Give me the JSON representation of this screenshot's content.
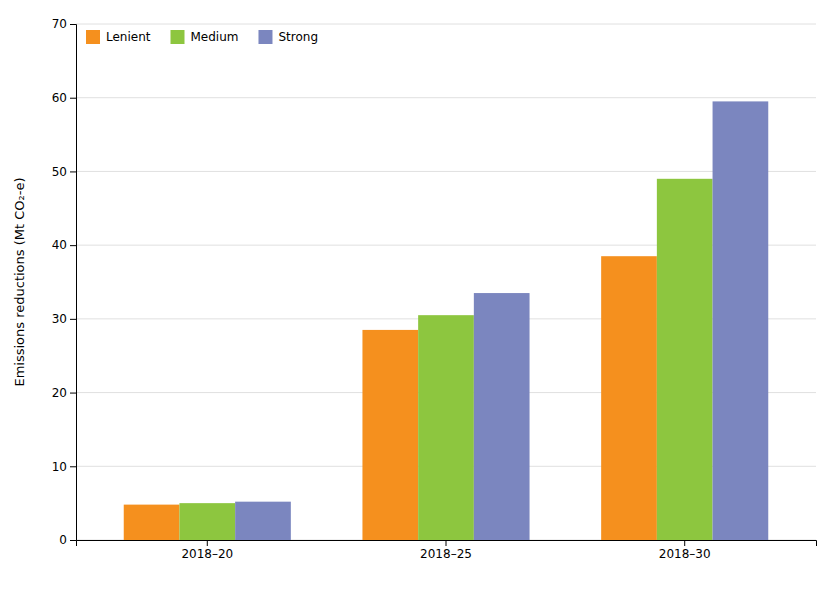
{
  "chart_data": {
    "type": "bar",
    "categories": [
      "2018–20",
      "2018–25",
      "2018–30"
    ],
    "series": [
      {
        "name": "Lenient",
        "color": "#F5901E",
        "values": [
          4.8,
          28.5,
          38.5
        ]
      },
      {
        "name": "Medium",
        "color": "#8DC63F",
        "values": [
          5.0,
          30.5,
          49.0
        ]
      },
      {
        "name": "Strong",
        "color": "#7B86BF",
        "values": [
          5.2,
          33.5,
          59.5
        ]
      }
    ],
    "ylabel": "Emissions reductions (Mt CO₂-e)",
    "ylim": [
      0,
      70
    ],
    "yticks": [
      0,
      10,
      20,
      30,
      40,
      50,
      60,
      70
    ],
    "grid": true,
    "legend": "upper left"
  }
}
